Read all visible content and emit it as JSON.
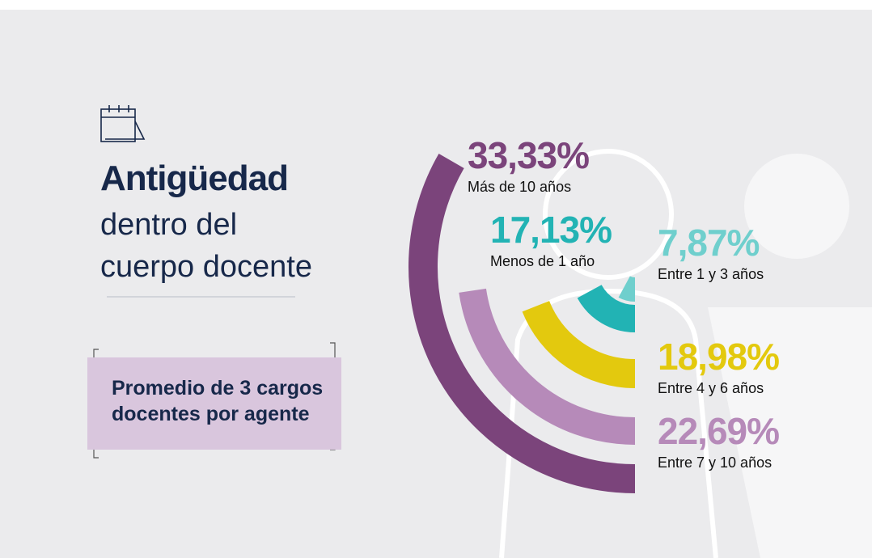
{
  "chart_data": {
    "type": "radial-bar",
    "title": "Antigüedad",
    "subtitle": "dentro del cuerpo docente",
    "note": "Promedio de 3 cargos docentes por agente",
    "categories": [
      "Más de 10 años",
      "Entre 7 y 10 años",
      "Entre 4 y 6 años",
      "Menos de 1 año",
      "Entre 1 y 3 años"
    ],
    "values": [
      33.33,
      22.69,
      18.98,
      17.13,
      7.87
    ],
    "value_labels": [
      "33,33%",
      "22,69%",
      "18,98%",
      "17,13%",
      "7,87%"
    ],
    "colors": [
      "#7b447b",
      "#b68ab9",
      "#e3c90e",
      "#22b3b4",
      "#6fcfcd"
    ]
  }
}
